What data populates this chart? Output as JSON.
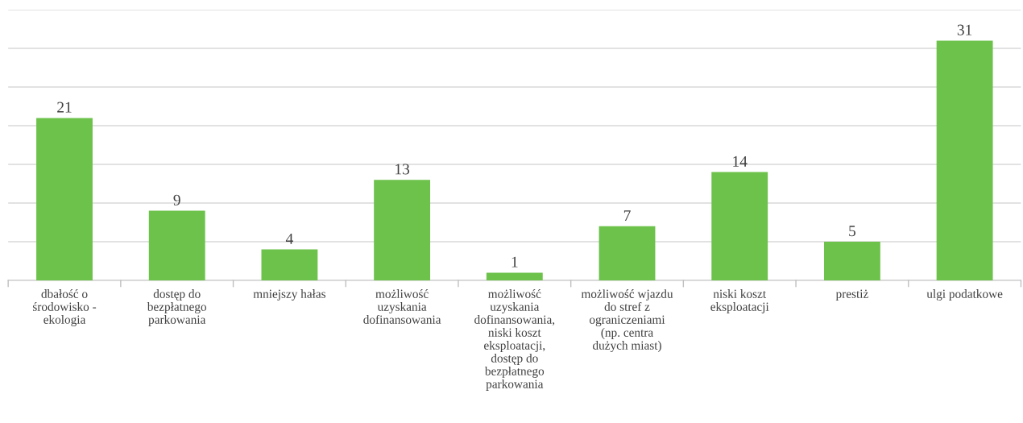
{
  "chart_data": {
    "type": "bar",
    "categories": [
      "dbałość o środowisko - ekologia",
      "dostęp do bezpłatnego parkowania",
      "mniejszy hałas",
      "możliwość uzyskania dofinansowania",
      "możliwość uzyskania dofinansowania, niski koszt eksploatacji, dostęp do bezpłatnego parkowania",
      "możliwość wjazdu do stref z ograniczeniami (np. centra dużych miast)",
      "niski koszt eksploatacji",
      "prestiż",
      "ulgi podatkowe"
    ],
    "values": [
      21,
      9,
      4,
      13,
      1,
      7,
      14,
      5,
      31
    ],
    "color": "#6cc24a",
    "ylim": [
      0,
      35
    ],
    "yticks": [
      {
        "value": 0,
        "label": null
      },
      {
        "value": 5,
        "label": null
      },
      {
        "value": 10,
        "label": null
      },
      {
        "value": 15,
        "label": null
      },
      {
        "value": 20,
        "label": null
      },
      {
        "value": 25,
        "label": null
      },
      {
        "value": 30,
        "label": null
      },
      {
        "value": 35,
        "label": null
      }
    ],
    "tick_labels": "x",
    "grid": "y",
    "data_labels": true
  }
}
